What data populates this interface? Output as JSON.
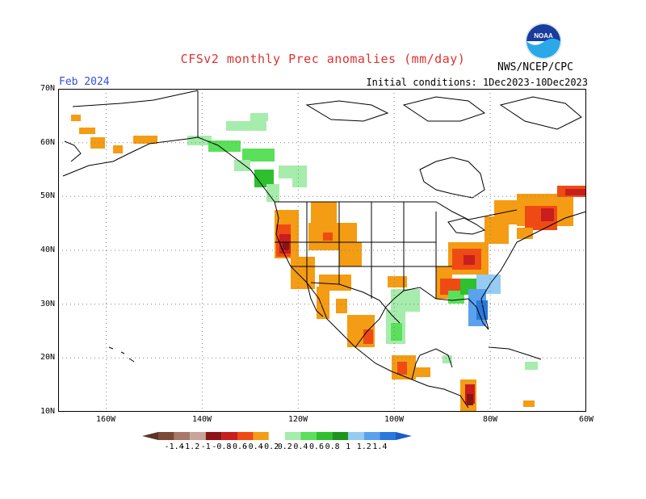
{
  "header": {
    "title": "CFSv2 monthly Prec anomalies (mm/day)",
    "month": "Feb 2024",
    "initial_conditions": "Initial conditions: 1Dec2023-10Dec2023",
    "agency": "NWS/NCEP/CPC",
    "logo_text": "NOAA"
  },
  "map": {
    "lat_labels": [
      "70N",
      "60N",
      "50N",
      "40N",
      "30N",
      "20N",
      "10N"
    ],
    "lon_labels": [
      "160W",
      "140W",
      "120W",
      "100W",
      "80W",
      "60W"
    ],
    "lat_range": [
      10,
      70
    ],
    "lon_range": [
      -170,
      -60
    ],
    "grid": true
  },
  "colorbar": {
    "labels": [
      "-1.4",
      "-1.2",
      "-1",
      "-0.8",
      "-0.6",
      "-0.4",
      "-0.2",
      "0.2",
      "0.4",
      "0.6",
      "0.8",
      "1",
      "1.2",
      "1.4"
    ],
    "colors": [
      "#7b4a36",
      "#a8786a",
      "#c8a49a",
      "#8c1414",
      "#c81e1e",
      "#f04a14",
      "#f49c14",
      "#ffffff",
      "#a6ecac",
      "#5ae05a",
      "#2ec02e",
      "#1a961a",
      "#96ccf4",
      "#5aa2ec",
      "#2a78dc"
    ],
    "left_arrow_color": "#5a3426",
    "right_arrow_color": "#1e5ac8"
  }
}
